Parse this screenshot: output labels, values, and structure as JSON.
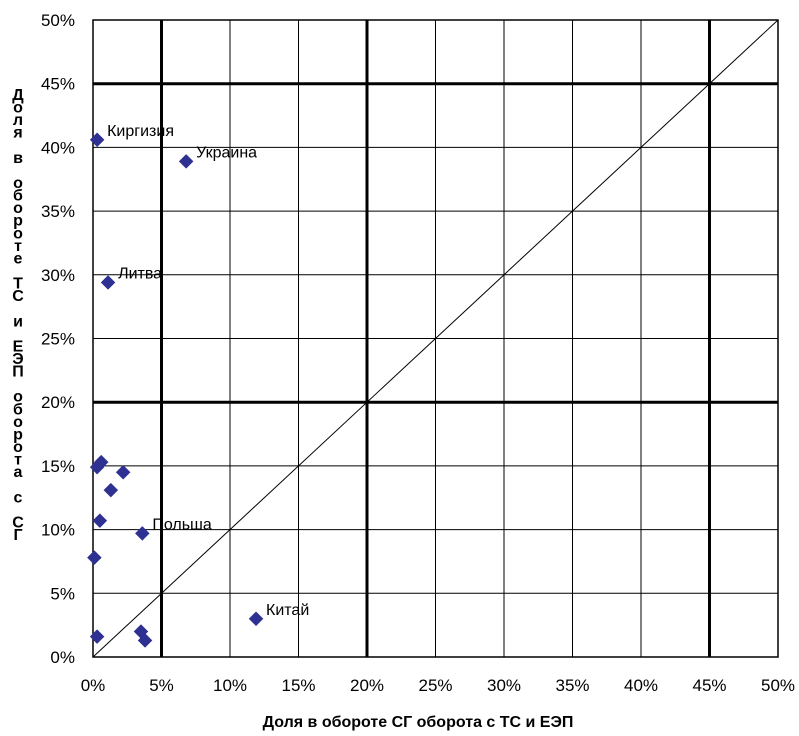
{
  "chart_data": {
    "type": "scatter",
    "title": "",
    "xlabel": "Доля в обороте СГ оборота с ТС и ЕЭП",
    "ylabel": "Доля в обороте ТС и ЕЭП оборота с СГ",
    "xlim": [
      0,
      50
    ],
    "ylim": [
      0,
      50
    ],
    "unit": "%",
    "x_ticks": [
      "0%",
      "5%",
      "10%",
      "15%",
      "20%",
      "25%",
      "30%",
      "35%",
      "40%",
      "45%",
      "50%"
    ],
    "y_ticks": [
      "0%",
      "5%",
      "10%",
      "15%",
      "20%",
      "25%",
      "30%",
      "35%",
      "40%",
      "45%",
      "50%"
    ],
    "grid": true,
    "thick_gridlines_x": [
      5,
      20,
      45
    ],
    "thick_gridlines_y": [
      20,
      45
    ],
    "reference_line": [
      [
        0,
        0
      ],
      [
        50,
        50
      ]
    ],
    "marker_color": "#2e3192",
    "points": [
      {
        "x": 0.3,
        "y": 40.6,
        "label": "Киргизия"
      },
      {
        "x": 6.8,
        "y": 38.9,
        "label": "Украина"
      },
      {
        "x": 1.1,
        "y": 29.4,
        "label": "Литва"
      },
      {
        "x": 3.6,
        "y": 9.7,
        "label": "Польша"
      },
      {
        "x": 11.9,
        "y": 3.0,
        "label": "Китай"
      },
      {
        "x": 0.3,
        "y": 14.9,
        "label": ""
      },
      {
        "x": 0.6,
        "y": 15.3,
        "label": ""
      },
      {
        "x": 2.2,
        "y": 14.5,
        "label": ""
      },
      {
        "x": 1.3,
        "y": 13.1,
        "label": ""
      },
      {
        "x": 0.5,
        "y": 10.7,
        "label": ""
      },
      {
        "x": 0.1,
        "y": 7.8,
        "label": ""
      },
      {
        "x": 0.3,
        "y": 1.6,
        "label": ""
      },
      {
        "x": 3.5,
        "y": 2.0,
        "label": ""
      },
      {
        "x": 3.8,
        "y": 1.3,
        "label": ""
      }
    ]
  }
}
